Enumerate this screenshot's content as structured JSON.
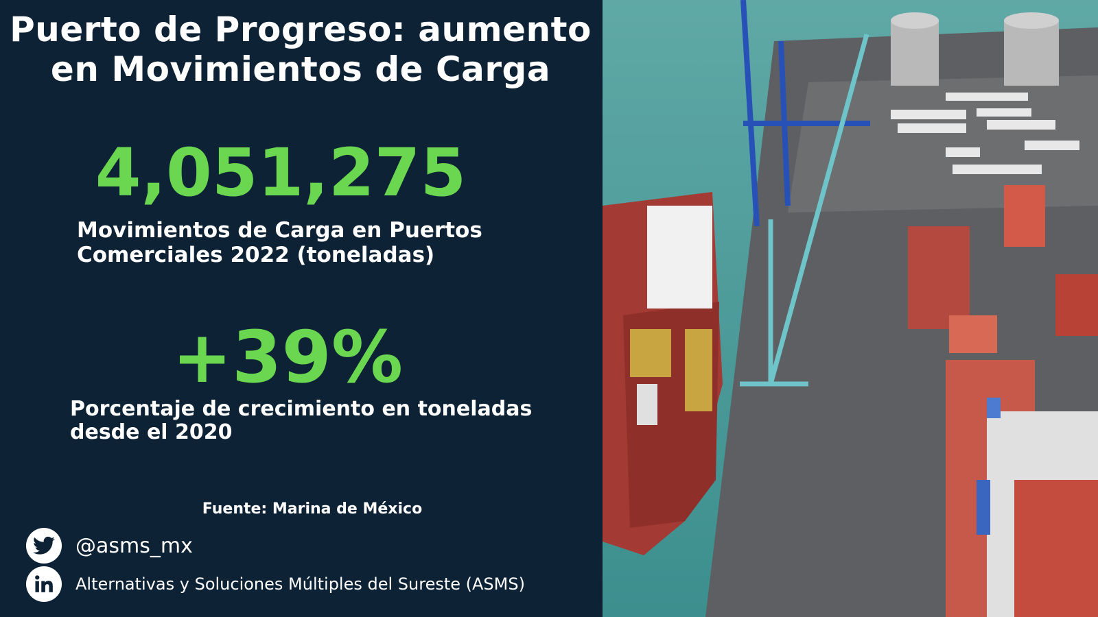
{
  "title": "Puerto de Progreso: aumento en Movimientos de Carga",
  "stat1": {
    "value": "4,051,275",
    "label": "Movimientos de Carga en Puertos Comerciales 2022 (toneladas)"
  },
  "stat2": {
    "value": "+39%",
    "label": "Porcentaje de crecimiento en toneladas desde el 2020"
  },
  "source": "Fuente: Marina de México",
  "social": {
    "twitter": {
      "icon": "twitter-icon",
      "handle": "@asms_mx"
    },
    "linkedin": {
      "icon": "linkedin-icon",
      "name": "Alternativas y Soluciones Múltiples del Sureste (ASMS)"
    }
  },
  "colors": {
    "background": "#0d2235",
    "accent": "#6bd64f",
    "text": "#ffffff"
  }
}
